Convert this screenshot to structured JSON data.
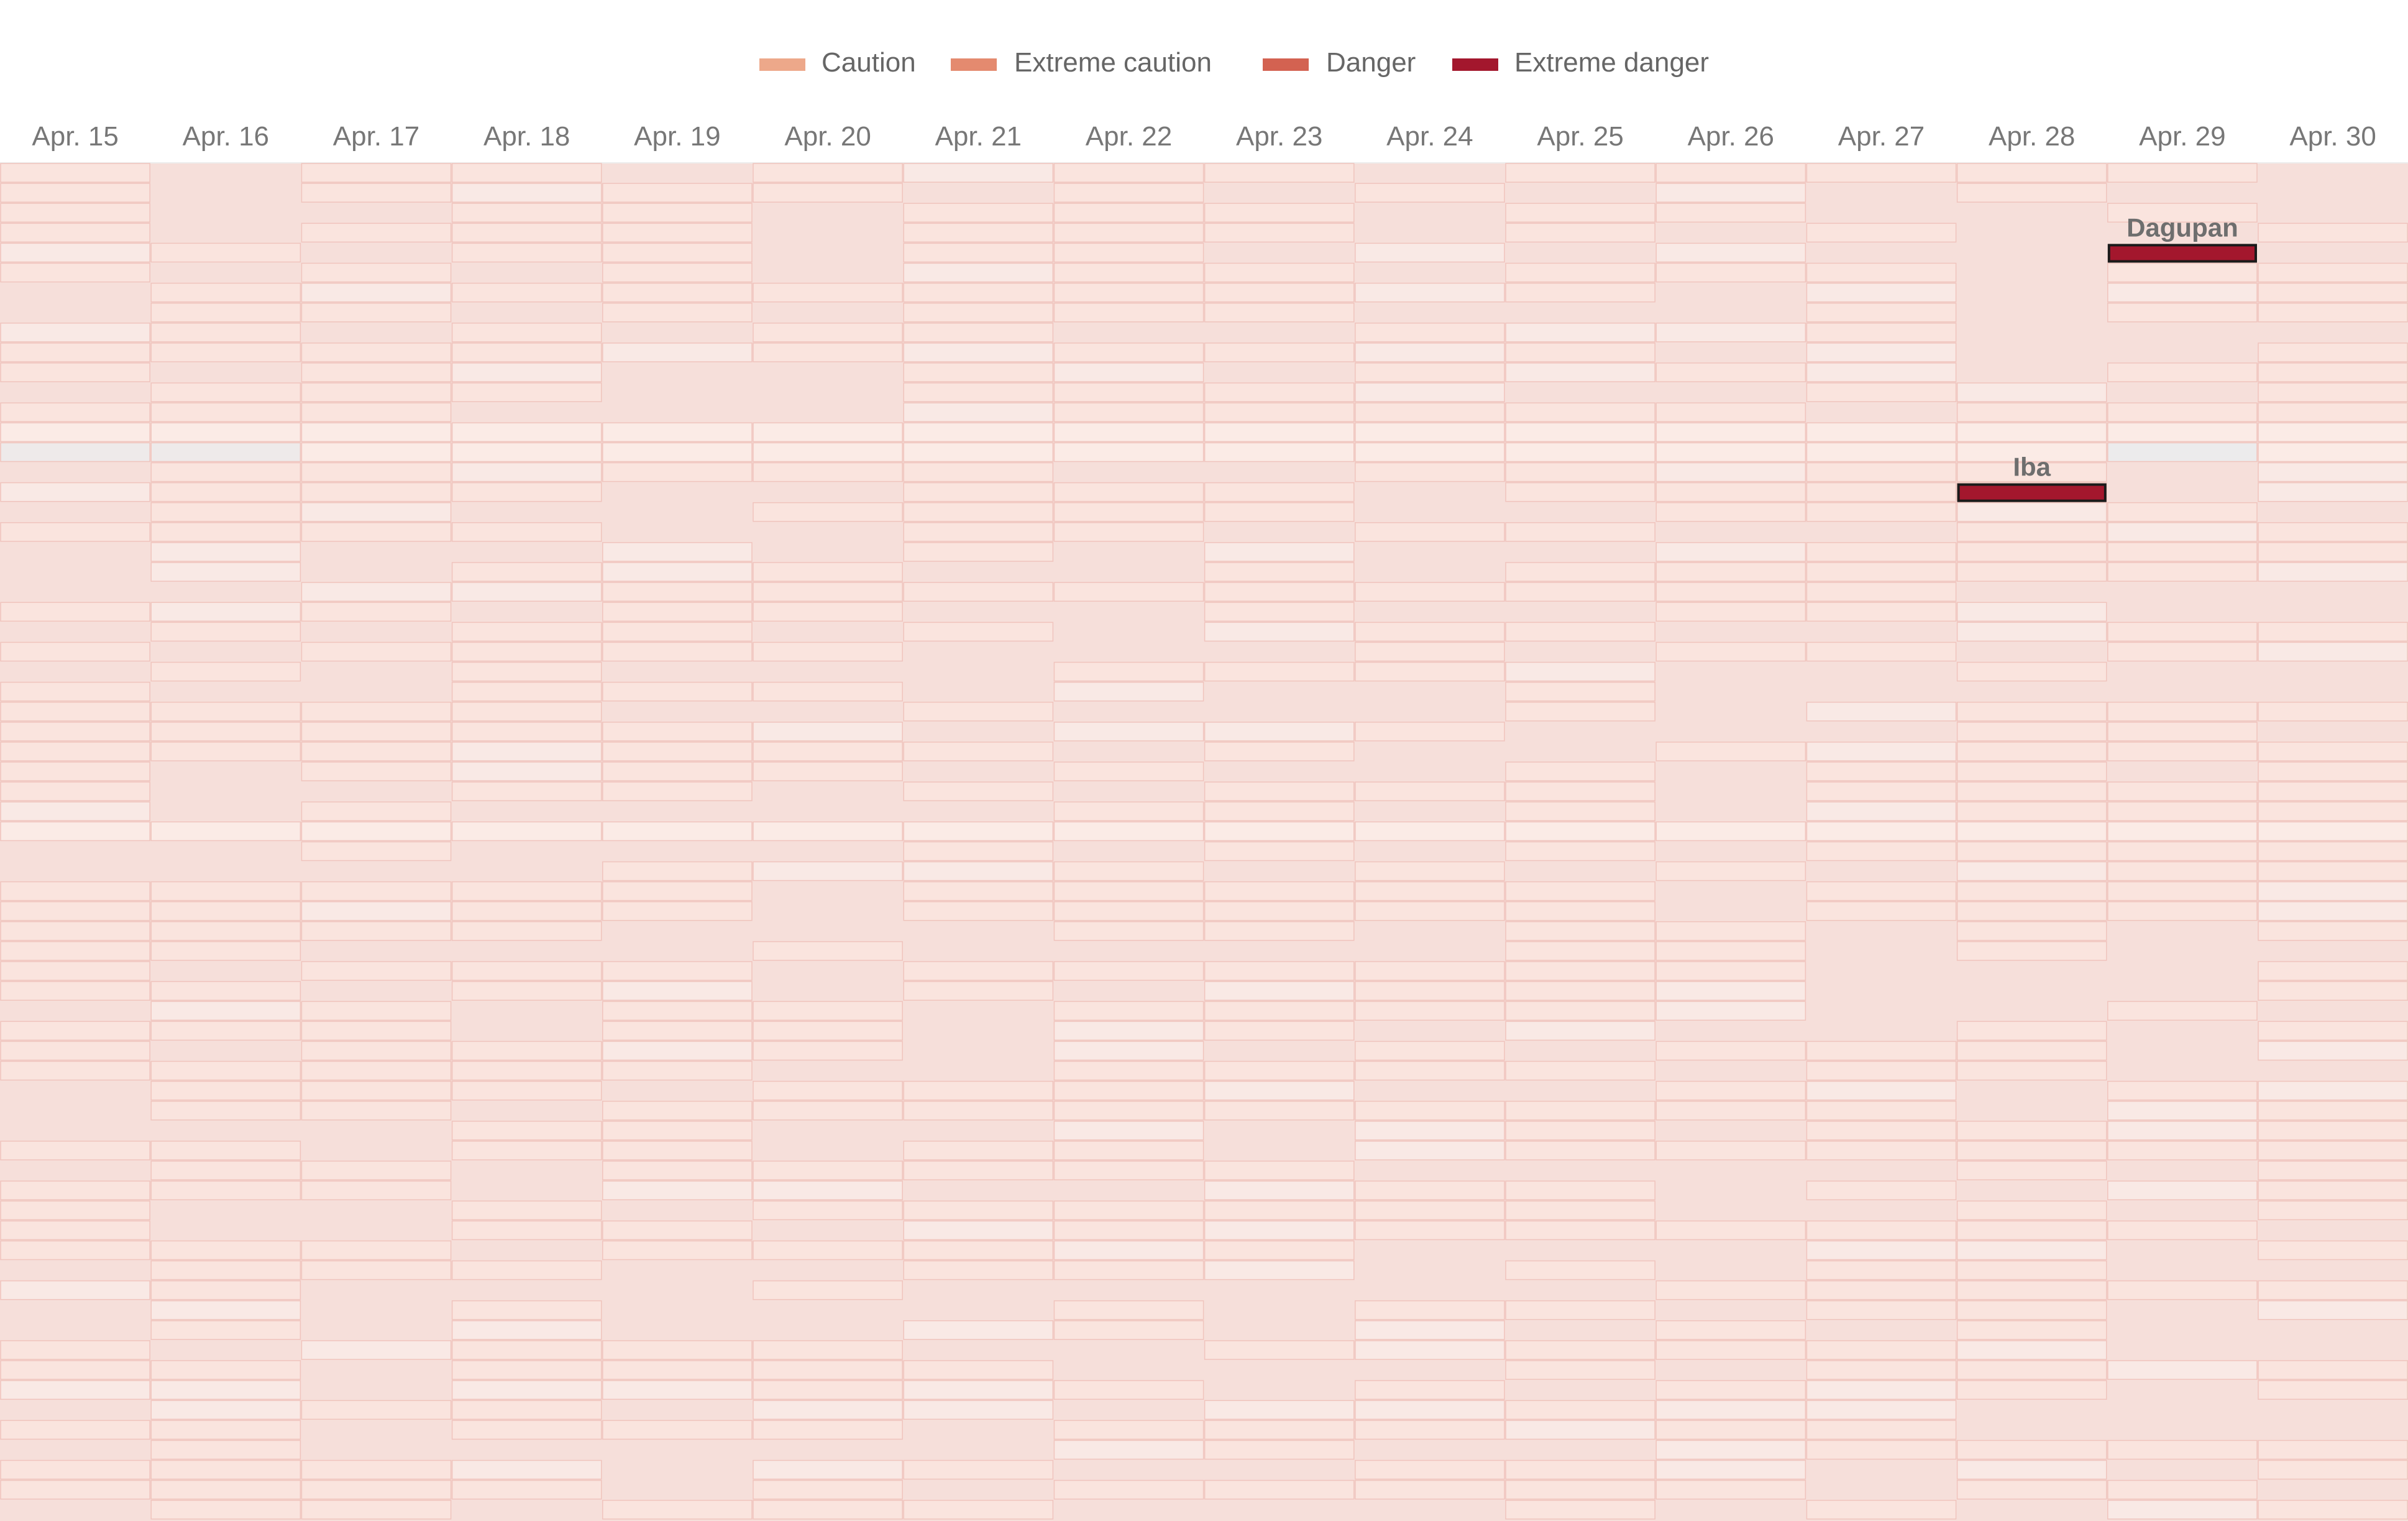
{
  "chart_data": {
    "type": "heatmap",
    "x": [
      "Apr. 15",
      "Apr. 16",
      "Apr. 17",
      "Apr. 18",
      "Apr. 19",
      "Apr. 20",
      "Apr. 21",
      "Apr. 22",
      "Apr. 23",
      "Apr. 24",
      "Apr. 25",
      "Apr. 26",
      "Apr. 27",
      "Apr. 28",
      "Apr. 29",
      "Apr. 30"
    ],
    "legend": [
      {
        "label": "Caution",
        "color": "#eda88a"
      },
      {
        "label": "Extreme caution",
        "color": "#e48a6f"
      },
      {
        "label": "Danger",
        "color": "#d36251"
      },
      {
        "label": "Extreme danger",
        "color": "#a3172d"
      }
    ],
    "annotations": [
      {
        "label": "Dagupan",
        "date": "Apr. 29",
        "level": "Extreme danger"
      },
      {
        "label": "Iba",
        "date": "Apr. 28",
        "level": "Extreme danger"
      }
    ]
  }
}
